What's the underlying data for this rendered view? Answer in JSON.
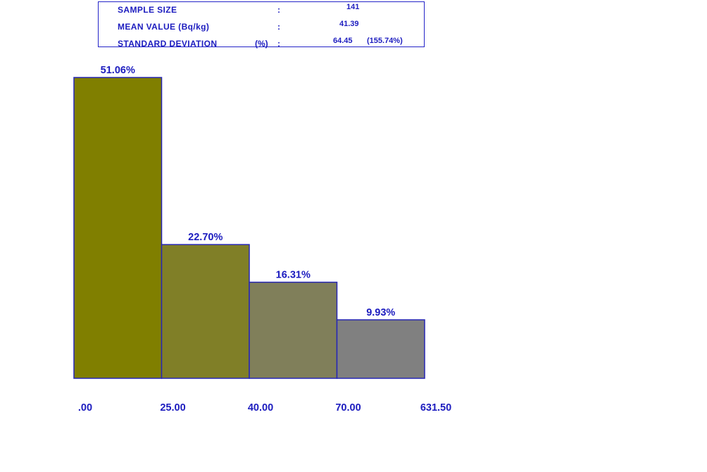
{
  "stats": {
    "sample_size": {
      "label": "SAMPLE SIZE",
      "colon": ":",
      "value": "141"
    },
    "mean_value": {
      "label": "MEAN VALUE (Bq/kg)",
      "colon": ":",
      "value": "41.39"
    },
    "standard_deviation": {
      "label": "STANDARD DEVIATION",
      "unit": "(%)",
      "colon": ":",
      "value": "64.45",
      "percent": "(155.74%)"
    }
  },
  "colors": {
    "label_text": "#1c1cbf",
    "bar_outline": "#2727b5",
    "bars": [
      "#807f00",
      "#807f27",
      "#807f5a",
      "#808080"
    ]
  },
  "chart_data": {
    "type": "bar",
    "bin_edges": [
      0.0,
      25.0,
      40.0,
      70.0,
      631.5
    ],
    "x_tick_labels": [
      ".00",
      "25.00",
      "40.00",
      "70.00",
      "631.50"
    ],
    "values": [
      51.06,
      22.7,
      16.31,
      9.93
    ],
    "value_labels": [
      "51.06%",
      "22.70%",
      "16.31%",
      "9.93%"
    ],
    "ylim": [
      0,
      51.06
    ],
    "grid": false,
    "title": "",
    "xlabel": "",
    "ylabel": ""
  }
}
